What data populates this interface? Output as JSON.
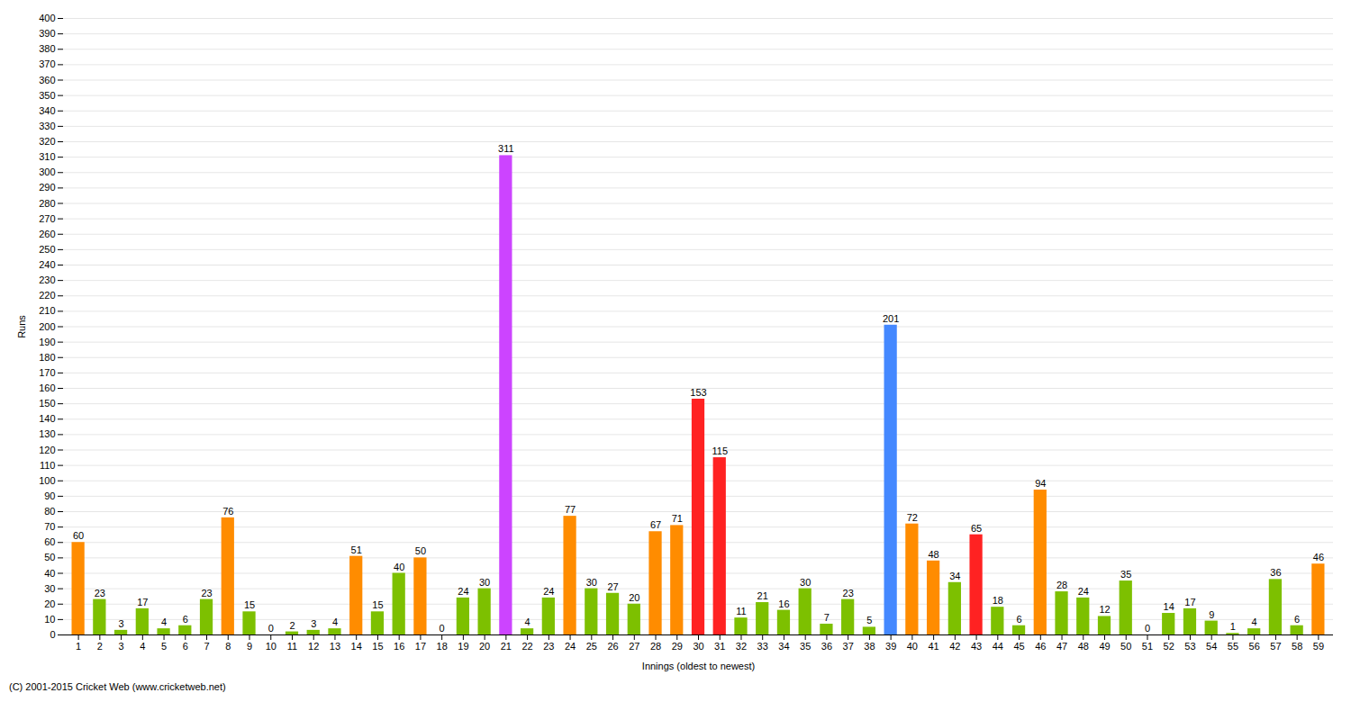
{
  "chart_data": {
    "type": "bar",
    "xlabel": "Innings (oldest to newest)",
    "ylabel": "Runs",
    "caption": "(C) 2001-2015 Cricket Web (www.cricketweb.net)",
    "categories": [
      1,
      2,
      3,
      4,
      5,
      6,
      7,
      8,
      9,
      10,
      11,
      12,
      13,
      14,
      15,
      16,
      17,
      18,
      19,
      20,
      21,
      22,
      23,
      24,
      25,
      26,
      27,
      28,
      29,
      30,
      31,
      32,
      33,
      34,
      35,
      36,
      37,
      38,
      39,
      40,
      41,
      42,
      43,
      44,
      45,
      46,
      47,
      48,
      49,
      50,
      51,
      52,
      53,
      54,
      55,
      56,
      57,
      58,
      59
    ],
    "values": [
      60,
      23,
      3,
      17,
      4,
      6,
      23,
      76,
      15,
      0,
      2,
      3,
      4,
      51,
      15,
      40,
      50,
      0,
      24,
      30,
      311,
      4,
      24,
      77,
      30,
      27,
      20,
      67,
      71,
      153,
      115,
      11,
      21,
      16,
      30,
      7,
      23,
      5,
      201,
      72,
      48,
      34,
      65,
      18,
      6,
      94,
      28,
      24,
      12,
      35,
      0,
      14,
      17,
      9,
      1,
      4,
      36,
      6,
      46
    ],
    "colors": [
      "#FF8C00",
      "#7DC000",
      "#7DC000",
      "#7DC000",
      "#7DC000",
      "#7DC000",
      "#7DC000",
      "#FF8C00",
      "#7DC000",
      "#7DC000",
      "#7DC000",
      "#7DC000",
      "#7DC000",
      "#FF8C00",
      "#7DC000",
      "#7DC000",
      "#FF8C00",
      "#7DC000",
      "#7DC000",
      "#7DC000",
      "#CC44FF",
      "#7DC000",
      "#7DC000",
      "#FF8C00",
      "#7DC000",
      "#7DC000",
      "#7DC000",
      "#FF8C00",
      "#FF8C00",
      "#FF2222",
      "#FF2222",
      "#7DC000",
      "#7DC000",
      "#7DC000",
      "#7DC000",
      "#7DC000",
      "#7DC000",
      "#7DC000",
      "#4488FF",
      "#FF8C00",
      "#FF8C00",
      "#7DC000",
      "#FF2222",
      "#7DC000",
      "#7DC000",
      "#FF8C00",
      "#7DC000",
      "#7DC000",
      "#7DC000",
      "#7DC000",
      "#7DC000",
      "#7DC000",
      "#7DC000",
      "#7DC000",
      "#7DC000",
      "#7DC000",
      "#7DC000",
      "#7DC000",
      "#FF8C00"
    ],
    "ylim": [
      0,
      400
    ],
    "yticks": [
      0,
      10,
      20,
      30,
      40,
      50,
      60,
      70,
      80,
      90,
      100,
      110,
      120,
      130,
      140,
      150,
      160,
      170,
      180,
      190,
      200,
      210,
      220,
      230,
      240,
      250,
      260,
      270,
      280,
      290,
      300,
      310,
      320,
      330,
      340,
      350,
      360,
      370,
      380,
      390,
      400
    ],
    "grid": true,
    "data_labels": true
  }
}
